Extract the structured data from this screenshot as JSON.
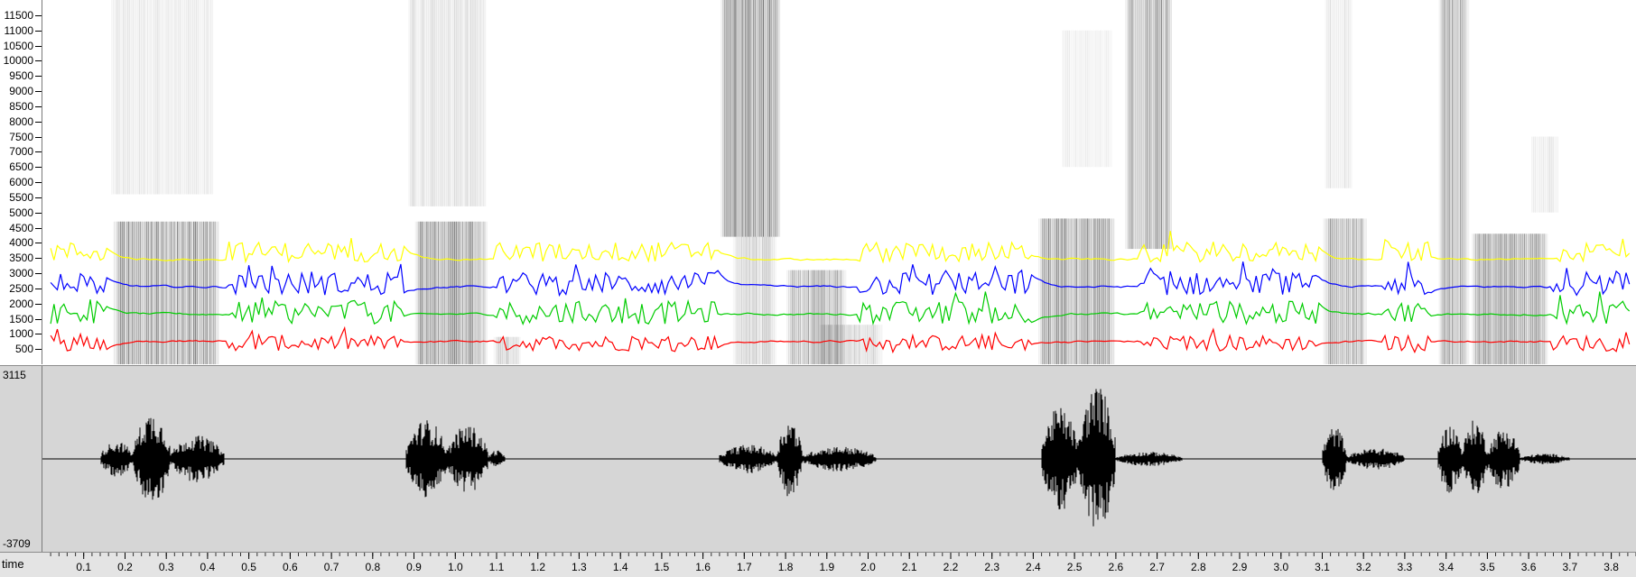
{
  "spectrogram": {
    "freq_ticks": [
      "11500",
      "11000",
      "10500",
      "10000",
      "9500",
      "9000",
      "8500",
      "8000",
      "7500",
      "7000",
      "6500",
      "6000",
      "5500",
      "5000",
      "4500",
      "4000",
      "3500",
      "3000",
      "2500",
      "2000",
      "1500",
      "1000",
      "500"
    ],
    "freq_axis_max": 12000,
    "formant_colors": {
      "f1": "#ff0000",
      "f2": "#00cc00",
      "f3": "#0000ff",
      "f4": "#ffff00"
    }
  },
  "waveform": {
    "max_label": "3115",
    "min_label": "-3709",
    "color": "#000000"
  },
  "time_axis": {
    "title": "time",
    "ticks": [
      "0.1",
      "0.2",
      "0.3",
      "0.4",
      "0.5",
      "0.6",
      "0.7",
      "0.8",
      "0.9",
      "1.0",
      "1.1",
      "1.2",
      "1.3",
      "1.4",
      "1.5",
      "1.6",
      "1.7",
      "1.8",
      "1.9",
      "2.0",
      "2.1",
      "2.2",
      "2.3",
      "2.4",
      "2.5",
      "2.6",
      "2.7",
      "2.8",
      "2.9",
      "3.0",
      "3.1",
      "3.2",
      "3.3",
      "3.4",
      "3.5",
      "3.6",
      "3.7",
      "3.8"
    ],
    "tick_values": [
      0.1,
      0.2,
      0.3,
      0.4,
      0.5,
      0.6,
      0.7,
      0.8,
      0.9,
      1.0,
      1.1,
      1.2,
      1.3,
      1.4,
      1.5,
      1.6,
      1.7,
      1.8,
      1.9,
      2.0,
      2.1,
      2.2,
      2.3,
      2.4,
      2.5,
      2.6,
      2.7,
      2.8,
      2.9,
      3.0,
      3.1,
      3.2,
      3.3,
      3.4,
      3.5,
      3.6,
      3.7,
      3.8
    ],
    "range": [
      0.0,
      3.86
    ]
  }
}
